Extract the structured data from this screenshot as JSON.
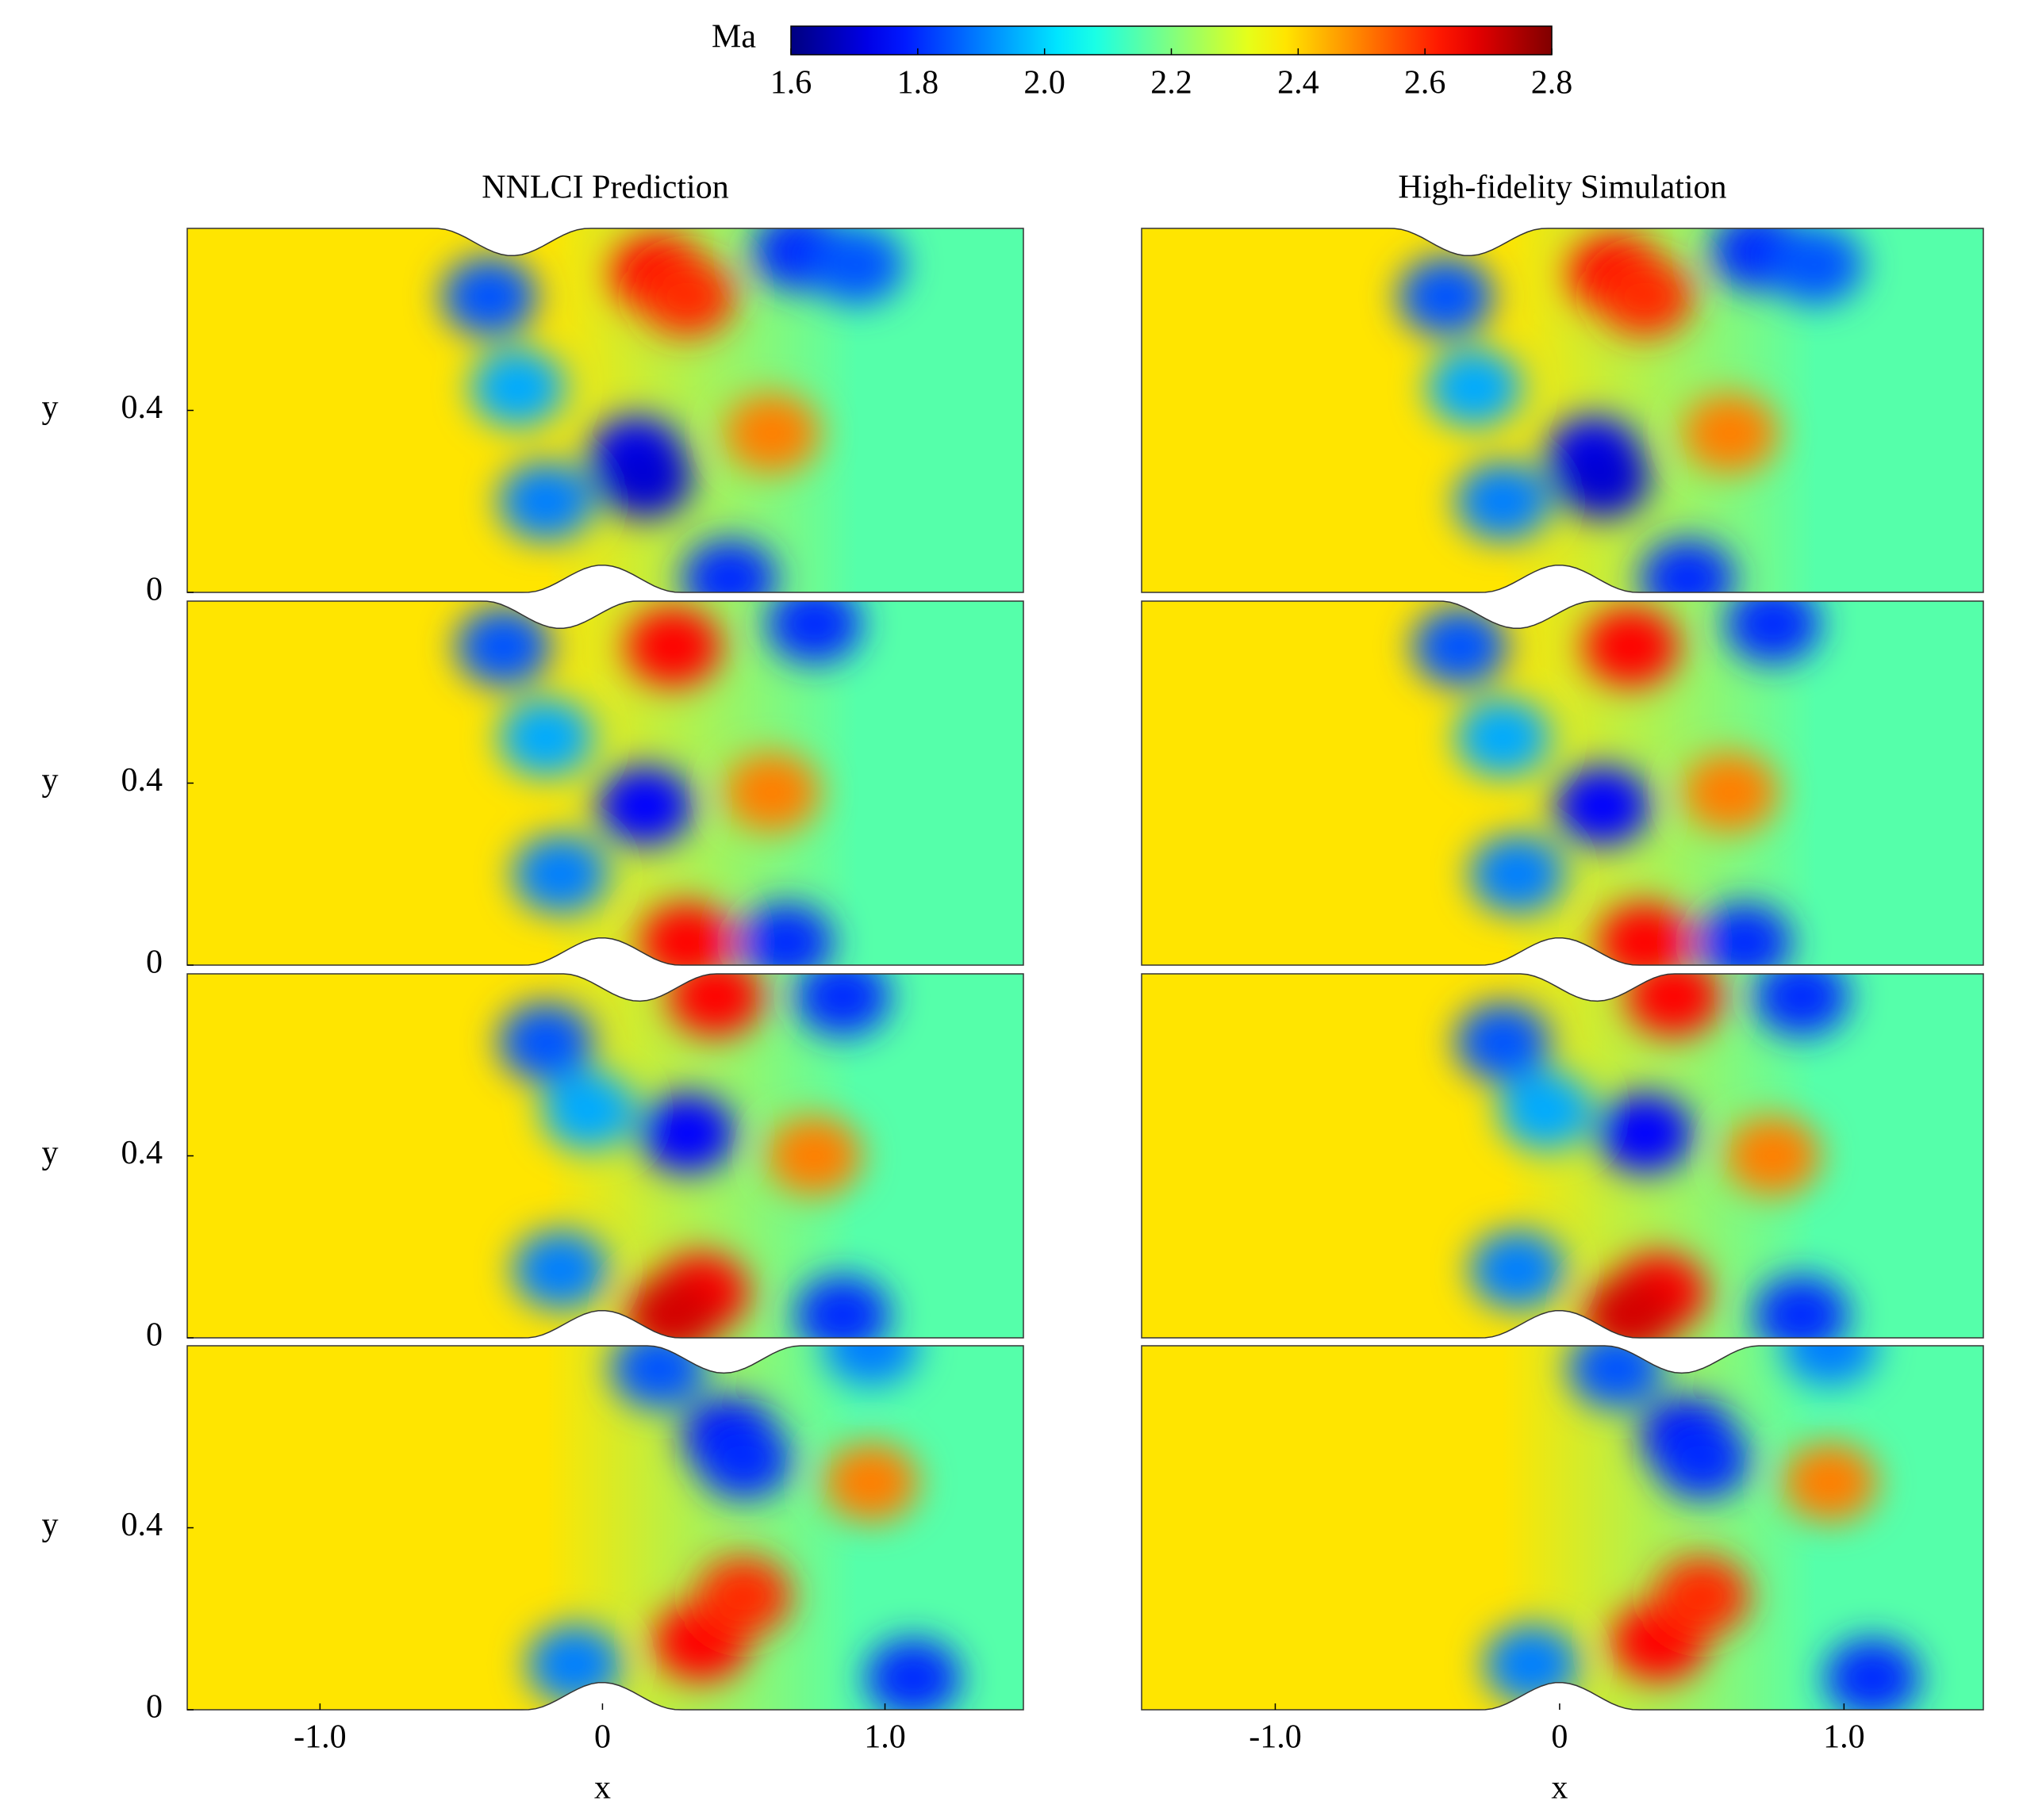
{
  "chart_data": {
    "type": "contour",
    "colorbar": {
      "label": "Ma",
      "lim": [
        1.6,
        2.8
      ],
      "ticks": [
        1.6,
        1.8,
        {
          "value": 2,
          "label": "2.0"
        },
        2.2,
        2.4,
        2.6,
        2.8
      ],
      "colormap": "jet"
    },
    "columns": [
      {
        "title": "NNLCI Prediction"
      },
      {
        "title": "High-fidelity Simulation"
      }
    ],
    "xlabel": "x",
    "ylabel": "y",
    "xlim": [
      -1.47,
      1.49
    ],
    "ylim": [
      0,
      0.8
    ],
    "xticks": [
      {
        "value": -1,
        "label": "-1.0"
      },
      0,
      {
        "value": 1,
        "label": "1.0"
      }
    ],
    "yticks": [
      0,
      0.4
    ],
    "geometry": {
      "bump_height": 0.06,
      "bump_half_width": 0.27
    },
    "inflow_ma": 2.38,
    "outflow_ma": 2.15,
    "rows": [
      {
        "top_bump_x": -0.32,
        "features": [
          [
            -0.4,
            0.65,
            1.85
          ],
          [
            -0.3,
            0.45,
            1.95
          ],
          [
            -0.2,
            0.2,
            1.9
          ],
          [
            0.12,
            0.3,
            1.75
          ],
          [
            0.15,
            0.25,
            1.7
          ],
          [
            0.2,
            0.7,
            2.65
          ],
          [
            0.3,
            0.65,
            2.6
          ],
          [
            0.6,
            0.35,
            2.5
          ],
          [
            0.7,
            0.75,
            1.8
          ],
          [
            0.9,
            0.72,
            1.85
          ],
          [
            0.45,
            0.03,
            1.8
          ]
        ]
      },
      {
        "top_bump_x": -0.15,
        "features": [
          [
            -0.35,
            0.7,
            1.85
          ],
          [
            -0.2,
            0.5,
            1.95
          ],
          [
            -0.15,
            0.2,
            1.9
          ],
          [
            0.15,
            0.35,
            1.75
          ],
          [
            0.25,
            0.7,
            2.65
          ],
          [
            0.6,
            0.38,
            2.5
          ],
          [
            0.75,
            0.75,
            1.8
          ],
          [
            0.3,
            0.05,
            2.65
          ],
          [
            0.65,
            0.05,
            1.8
          ]
        ]
      },
      {
        "top_bump_x": 0.13,
        "features": [
          [
            -0.2,
            0.65,
            1.85
          ],
          [
            -0.05,
            0.5,
            1.95
          ],
          [
            -0.15,
            0.15,
            1.9
          ],
          [
            0.3,
            0.45,
            1.75
          ],
          [
            0.4,
            0.75,
            2.65
          ],
          [
            0.75,
            0.4,
            2.5
          ],
          [
            0.85,
            0.75,
            1.8
          ],
          [
            0.35,
            0.1,
            2.65
          ],
          [
            0.25,
            0.05,
            2.7
          ],
          [
            0.85,
            0.05,
            1.8
          ]
        ]
      },
      {
        "top_bump_x": 0.43,
        "features": [
          [
            0.2,
            0.75,
            1.85
          ],
          [
            0.45,
            0.6,
            1.75
          ],
          [
            0.5,
            0.55,
            1.8
          ],
          [
            0.95,
            0.5,
            2.5
          ],
          [
            -0.1,
            0.1,
            1.9
          ],
          [
            0.35,
            0.15,
            2.65
          ],
          [
            0.5,
            0.25,
            2.6
          ],
          [
            1.1,
            0.07,
            1.8
          ],
          [
            0.95,
            0.8,
            1.9
          ]
        ]
      }
    ]
  }
}
